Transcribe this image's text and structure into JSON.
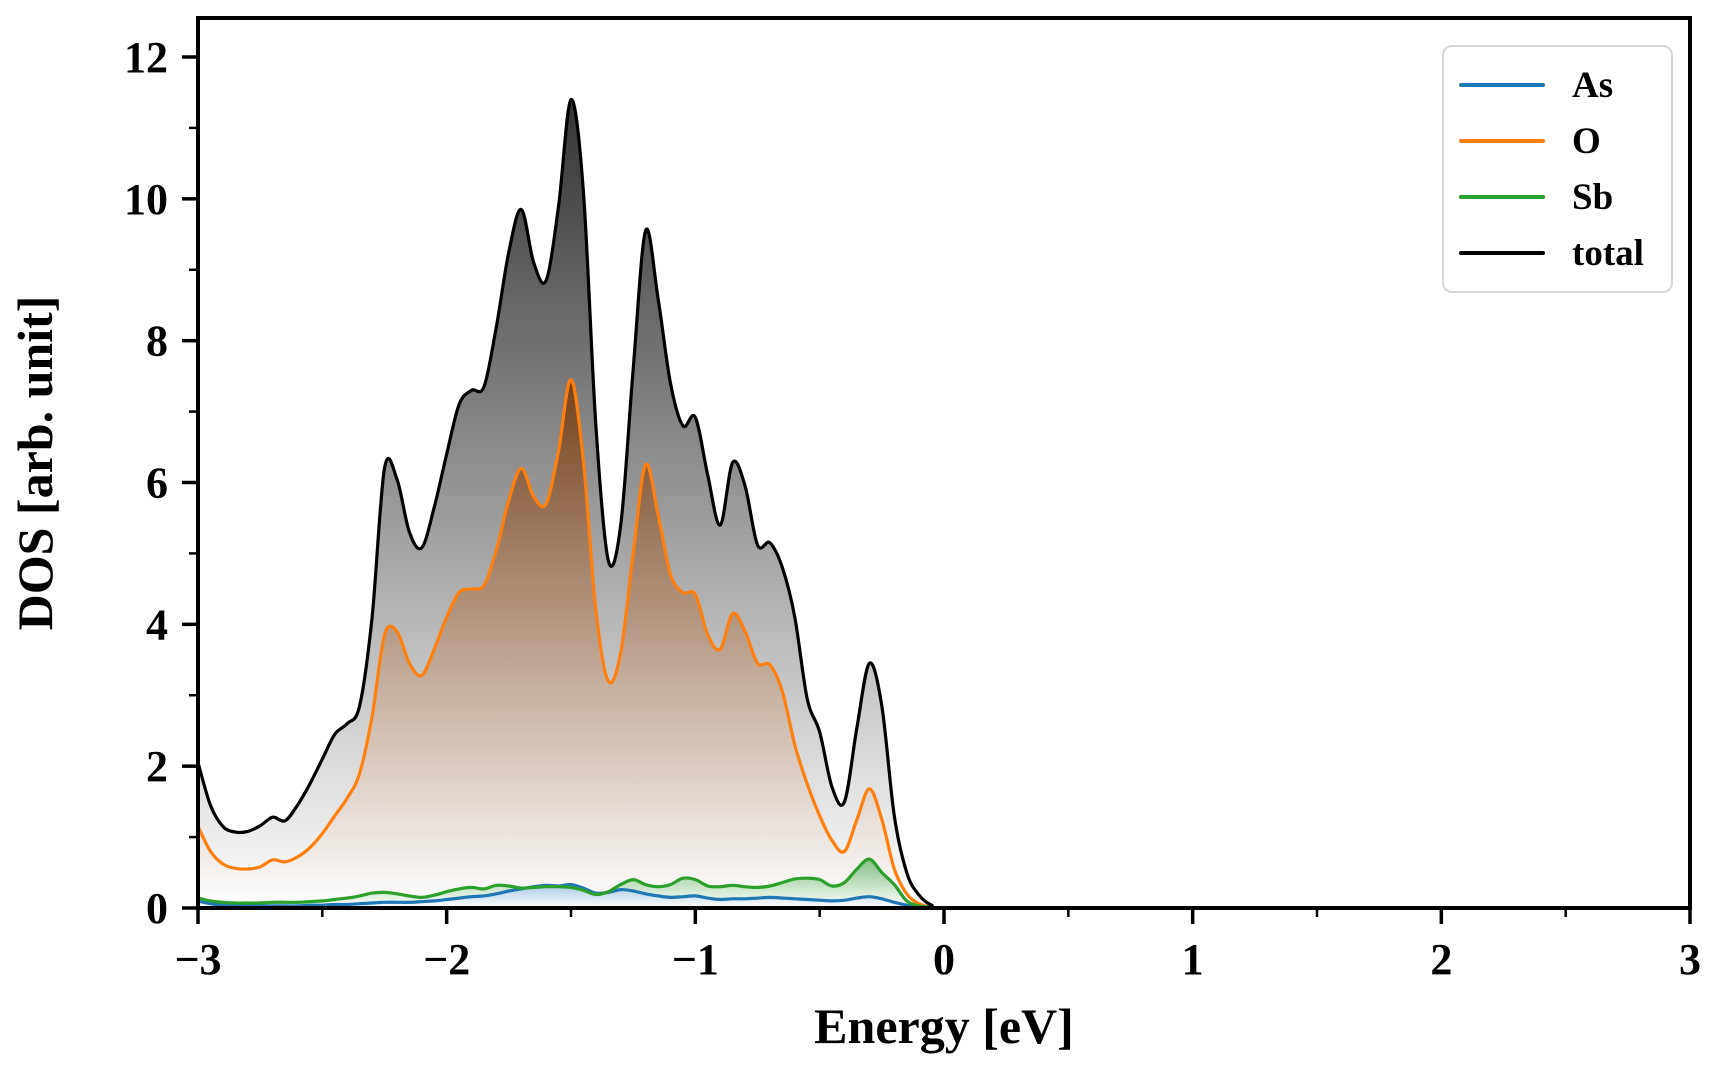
{
  "figure": {
    "xlabel": "Energy [eV]",
    "ylabel": "DOS [arb. unit]",
    "background": "#ffffff",
    "spine_color": "#000000"
  },
  "axes": {
    "xlim": [
      -3,
      3
    ],
    "ylim": [
      0,
      12.55
    ],
    "xticks": {
      "values": [
        -3,
        -2,
        -1,
        0,
        1,
        2,
        3
      ],
      "labels": [
        "−3",
        "−2",
        "−1",
        "0",
        "1",
        "2",
        "3"
      ]
    },
    "xminor": [
      -2.5,
      -1.5,
      -0.5,
      0.5,
      1.5,
      2.5
    ],
    "yticks": {
      "values": [
        0,
        2,
        4,
        6,
        8,
        10,
        12
      ],
      "labels": [
        "0",
        "2",
        "4",
        "6",
        "8",
        "10",
        "12"
      ]
    },
    "yminor": [
      1,
      3,
      5,
      7,
      9,
      11
    ],
    "grid": false
  },
  "legend": {
    "position": "upper right",
    "labels": [
      "As",
      "O",
      "Sb",
      "total"
    ]
  },
  "chart_data": {
    "type": "area",
    "title": "",
    "xlabel": "Energy [eV]",
    "ylabel": "DOS [arb. unit]",
    "xlim": [
      -3,
      3
    ],
    "ylim": [
      0,
      12.55
    ],
    "legend_position": "upper right",
    "grid": false,
    "x": [
      -3.0,
      -2.95,
      -2.9,
      -2.85,
      -2.8,
      -2.75,
      -2.7,
      -2.65,
      -2.6,
      -2.55,
      -2.5,
      -2.45,
      -2.4,
      -2.35,
      -2.3,
      -2.25,
      -2.2,
      -2.15,
      -2.1,
      -2.05,
      -2.0,
      -1.95,
      -1.9,
      -1.85,
      -1.8,
      -1.75,
      -1.7,
      -1.65,
      -1.6,
      -1.55,
      -1.5,
      -1.45,
      -1.4,
      -1.35,
      -1.3,
      -1.25,
      -1.2,
      -1.15,
      -1.1,
      -1.05,
      -1.0,
      -0.95,
      -0.9,
      -0.85,
      -0.8,
      -0.75,
      -0.7,
      -0.65,
      -0.6,
      -0.55,
      -0.5,
      -0.45,
      -0.4,
      -0.35,
      -0.3,
      -0.25,
      -0.2,
      -0.15,
      -0.1,
      -0.05,
      0.0,
      0.5,
      1.0,
      1.5,
      2.0,
      2.5,
      3.0
    ],
    "series": [
      {
        "name": "As",
        "color": "#1f77b4",
        "fill_top": "#a6c9e2",
        "values": [
          0.1,
          0.06,
          0.04,
          0.03,
          0.03,
          0.03,
          0.03,
          0.03,
          0.03,
          0.04,
          0.04,
          0.05,
          0.05,
          0.06,
          0.07,
          0.08,
          0.08,
          0.08,
          0.09,
          0.1,
          0.12,
          0.14,
          0.16,
          0.17,
          0.2,
          0.24,
          0.27,
          0.3,
          0.32,
          0.31,
          0.33,
          0.28,
          0.21,
          0.22,
          0.26,
          0.24,
          0.2,
          0.17,
          0.15,
          0.16,
          0.17,
          0.14,
          0.12,
          0.13,
          0.13,
          0.14,
          0.15,
          0.14,
          0.13,
          0.12,
          0.11,
          0.1,
          0.11,
          0.14,
          0.16,
          0.13,
          0.08,
          0.04,
          0.01,
          0.0,
          0.0,
          0.0,
          0.0,
          0.0,
          0.0,
          0.0,
          0.0
        ]
      },
      {
        "name": "O",
        "color": "#ff7f0e",
        "fill_top": "#75411a",
        "values": [
          1.15,
          0.8,
          0.62,
          0.56,
          0.55,
          0.58,
          0.68,
          0.65,
          0.72,
          0.85,
          1.05,
          1.3,
          1.55,
          1.9,
          2.7,
          3.85,
          3.9,
          3.45,
          3.28,
          3.65,
          4.1,
          4.45,
          4.5,
          4.55,
          5.05,
          5.75,
          6.2,
          5.8,
          5.7,
          6.45,
          7.45,
          6.3,
          4.2,
          3.2,
          3.6,
          5.0,
          6.25,
          5.55,
          4.7,
          4.45,
          4.42,
          3.85,
          3.65,
          4.15,
          3.9,
          3.45,
          3.43,
          3.05,
          2.3,
          1.75,
          1.3,
          0.95,
          0.8,
          1.25,
          1.68,
          1.25,
          0.55,
          0.2,
          0.06,
          0.01,
          0.0,
          0.0,
          0.0,
          0.0,
          0.0,
          0.0,
          0.0
        ]
      },
      {
        "name": "Sb",
        "color": "#2ca02c",
        "fill_top": "#84bf84",
        "values": [
          0.14,
          0.1,
          0.08,
          0.07,
          0.07,
          0.07,
          0.08,
          0.08,
          0.08,
          0.09,
          0.1,
          0.12,
          0.14,
          0.17,
          0.21,
          0.22,
          0.2,
          0.17,
          0.15,
          0.18,
          0.23,
          0.27,
          0.29,
          0.27,
          0.32,
          0.31,
          0.28,
          0.29,
          0.3,
          0.3,
          0.29,
          0.25,
          0.19,
          0.23,
          0.33,
          0.4,
          0.33,
          0.3,
          0.33,
          0.42,
          0.4,
          0.31,
          0.3,
          0.32,
          0.3,
          0.29,
          0.31,
          0.36,
          0.41,
          0.42,
          0.4,
          0.31,
          0.36,
          0.55,
          0.69,
          0.5,
          0.33,
          0.1,
          0.03,
          0.01,
          0.0,
          0.0,
          0.0,
          0.0,
          0.0,
          0.0,
          0.0
        ]
      },
      {
        "name": "total",
        "color": "#000000",
        "fill_top": "#333333",
        "values": [
          2.05,
          1.45,
          1.15,
          1.07,
          1.08,
          1.16,
          1.28,
          1.23,
          1.45,
          1.75,
          2.1,
          2.45,
          2.6,
          2.85,
          4.1,
          6.2,
          6.05,
          5.3,
          5.08,
          5.65,
          6.4,
          7.1,
          7.3,
          7.35,
          8.2,
          9.25,
          9.85,
          9.1,
          8.85,
          9.9,
          11.4,
          10.1,
          6.8,
          4.9,
          5.4,
          7.6,
          9.55,
          8.6,
          7.4,
          6.8,
          6.92,
          6.1,
          5.4,
          6.28,
          5.95,
          5.12,
          5.15,
          4.8,
          4.1,
          2.95,
          2.48,
          1.7,
          1.5,
          2.55,
          3.45,
          2.85,
          1.3,
          0.5,
          0.18,
          0.04,
          0.0,
          0.0,
          0.0,
          0.0,
          0.0,
          0.0,
          0.0
        ]
      }
    ]
  }
}
